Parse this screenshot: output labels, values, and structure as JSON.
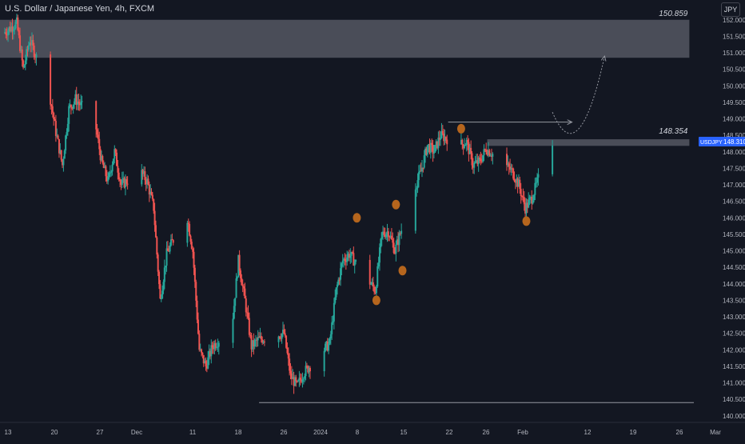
{
  "chart_data": {
    "type": "candlestick",
    "title": "U.S. Dollar / Japanese Yen, 4h, FXCM",
    "currency": "JPY",
    "symbol_tag": "USDJPY",
    "current_price": "148.310",
    "ylim": [
      139.8,
      152.6
    ],
    "y_ticks": [
      "152.000",
      "151.500",
      "151.000",
      "150.500",
      "150.000",
      "149.500",
      "149.000",
      "148.500",
      "148.000",
      "147.500",
      "147.000",
      "146.500",
      "146.000",
      "145.500",
      "145.000",
      "144.500",
      "144.000",
      "143.500",
      "143.000",
      "142.500",
      "142.000",
      "141.500",
      "141.000",
      "140.500",
      "140.000"
    ],
    "x_ticks": [
      "13",
      "20",
      "27",
      "Dec",
      "11",
      "18",
      "26",
      "2024",
      "8",
      "15",
      "22",
      "26",
      "Feb",
      "12",
      "19",
      "26",
      "Mar"
    ],
    "x_range": [
      "2023-11-13",
      "2024-03-01"
    ],
    "colors": {
      "up": "#26a69a",
      "down": "#ef5350",
      "marker": "#b5651d",
      "zone": "#5d606b"
    },
    "price_path": [
      [
        "2023-11-13",
        151.6
      ],
      [
        "2023-11-15",
        151.9
      ],
      [
        "2023-11-16",
        150.5
      ],
      [
        "2023-11-17",
        151.4
      ],
      [
        "2023-11-20",
        149.8
      ],
      [
        "2023-11-21",
        148.6
      ],
      [
        "2023-11-22",
        147.6
      ],
      [
        "2023-11-23",
        149.3
      ],
      [
        "2023-11-24",
        149.6
      ],
      [
        "2023-11-27",
        148.9
      ],
      [
        "2023-11-28",
        147.7
      ],
      [
        "2023-11-29",
        147.1
      ],
      [
        "2023-11-30",
        148.0
      ],
      [
        "2023-12-01",
        147.0
      ],
      [
        "2023-12-04",
        147.4
      ],
      [
        "2023-12-05",
        147.1
      ],
      [
        "2023-12-06",
        146.3
      ],
      [
        "2023-12-07",
        143.5
      ],
      [
        "2023-12-08",
        144.9
      ],
      [
        "2023-12-11",
        146.2
      ],
      [
        "2023-12-12",
        145.0
      ],
      [
        "2023-12-13",
        142.0
      ],
      [
        "2023-12-14",
        141.5
      ],
      [
        "2023-12-15",
        142.1
      ],
      [
        "2023-12-18",
        142.7
      ],
      [
        "2023-12-19",
        144.7
      ],
      [
        "2023-12-20",
        143.5
      ],
      [
        "2023-12-21",
        142.1
      ],
      [
        "2023-12-22",
        142.3
      ],
      [
        "2023-12-26",
        142.5
      ],
      [
        "2023-12-27",
        141.2
      ],
      [
        "2023-12-28",
        140.9
      ],
      [
        "2023-12-29",
        141.3
      ],
      [
        "2024-01-02",
        142.2
      ],
      [
        "2024-01-03",
        143.8
      ],
      [
        "2024-01-04",
        144.7
      ],
      [
        "2024-01-05",
        144.9
      ],
      [
        "2024-01-08",
        144.1
      ],
      [
        "2024-01-09",
        143.8
      ],
      [
        "2024-01-10",
        145.5
      ],
      [
        "2024-01-11",
        145.6
      ],
      [
        "2024-01-12",
        145.0
      ],
      [
        "2024-01-15",
        146.9
      ],
      [
        "2024-01-16",
        147.4
      ],
      [
        "2024-01-17",
        148.2
      ],
      [
        "2024-01-18",
        148.0
      ],
      [
        "2024-01-19",
        148.5
      ],
      [
        "2024-01-22",
        148.2
      ],
      [
        "2024-01-23",
        148.3
      ],
      [
        "2024-01-24",
        147.6
      ],
      [
        "2024-01-25",
        147.7
      ],
      [
        "2024-01-26",
        148.1
      ],
      [
        "2024-01-29",
        147.6
      ],
      [
        "2024-01-30",
        147.4
      ],
      [
        "2024-01-31",
        147.0
      ],
      [
        "2024-02-01",
        146.3
      ],
      [
        "2024-02-02",
        146.6
      ],
      [
        "2024-02-05",
        148.3
      ]
    ],
    "supply_zone": {
      "from": "2023-11-13",
      "to": "2024-02-26",
      "low": 150.85,
      "high": 152.0,
      "label": "150.859"
    },
    "level_line": {
      "from": "2024-01-26",
      "to": "2024-02-26",
      "low": 148.18,
      "high": 148.38,
      "label": "148.354"
    },
    "arrows": [
      {
        "from": [
          "2024-01-20",
          148.9
        ],
        "to": [
          "2024-02-08",
          148.9
        ]
      },
      {
        "from": [
          "2023-12-22",
          140.4
        ],
        "to": [
          "2024-03-01",
          140.4
        ]
      }
    ],
    "projection": {
      "points": [
        [
          "2024-02-05",
          149.2
        ],
        [
          "2024-02-09",
          148.3
        ],
        [
          "2024-02-13",
          150.9
        ]
      ]
    },
    "swing_markers": [
      [
        "2024-01-06",
        146.0
      ],
      [
        "2024-01-09",
        143.5
      ],
      [
        "2024-01-12",
        146.4
      ],
      [
        "2024-01-13",
        144.4
      ],
      [
        "2024-01-22",
        148.7
      ],
      [
        "2024-02-01",
        145.9
      ]
    ]
  }
}
